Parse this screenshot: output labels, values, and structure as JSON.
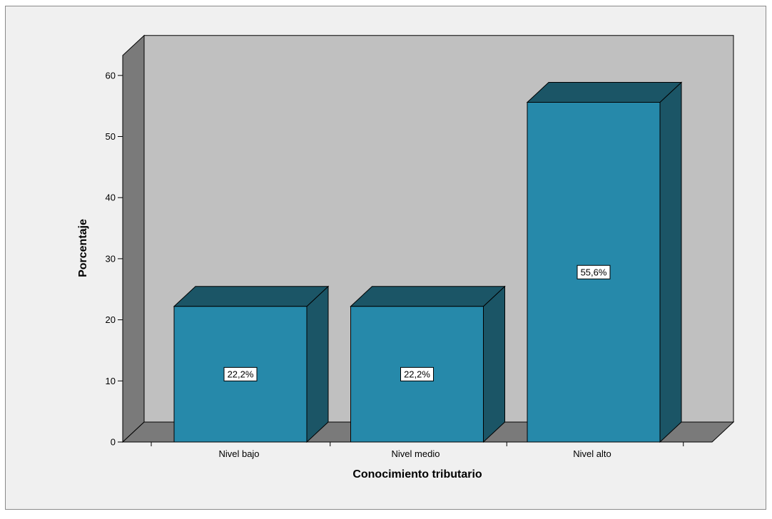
{
  "chart_data": {
    "type": "bar",
    "categories": [
      "Nivel bajo",
      "Nivel medio",
      "Nivel alto"
    ],
    "values": [
      22.2,
      22.2,
      55.6
    ],
    "data_labels": [
      "22,2%",
      "22,2%",
      "55,6%"
    ],
    "xlabel": "Conocimiento tributario",
    "ylabel": "Porcentaje",
    "ylim": [
      0,
      60
    ],
    "yticks": [
      "0",
      "10",
      "20",
      "30",
      "40",
      "50",
      "60"
    ],
    "three_d": true,
    "grid": false,
    "colors": {
      "outer_background": "#f0f0f0",
      "plot_back_wall": "#c0c0c0",
      "side_wall": "#7a7a7a",
      "floor": "#7a7a7a",
      "bar_front": "#2689aa",
      "bar_top": "#1b5566",
      "bar_side": "#1b5566"
    }
  }
}
